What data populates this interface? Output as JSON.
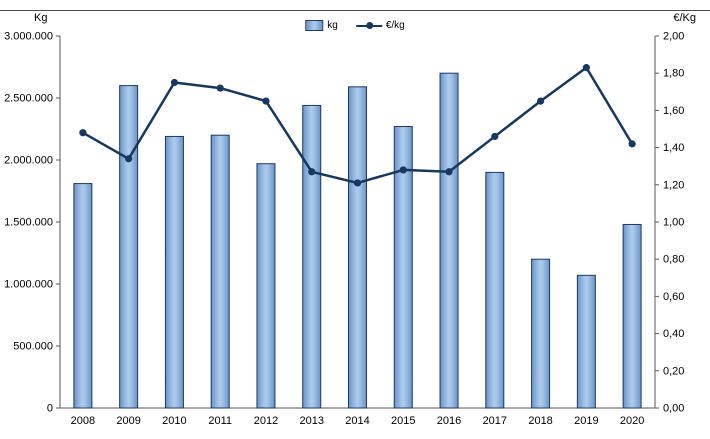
{
  "chart": {
    "left_axis_title": "Kg",
    "right_axis_title": "€/Kg",
    "legend": {
      "bar_label": "kg",
      "line_label": "€/kg"
    },
    "colors": {
      "bar_fill_dark": "#6B93C4",
      "bar_fill_mid": "#9DBFE6",
      "bar_fill_light": "#AECBEC",
      "bar_border": "#1F3864",
      "line": "#17375E",
      "axis": "#595959",
      "text": "#000000"
    }
  },
  "chart_data": {
    "type": "bar+line",
    "title": "",
    "categories": [
      "2008",
      "2009",
      "2010",
      "2011",
      "2012",
      "2013",
      "2014",
      "2015",
      "2016",
      "2017",
      "2018",
      "2019",
      "2020"
    ],
    "series": [
      {
        "name": "kg",
        "type": "bar",
        "axis": "left",
        "values": [
          1810000,
          2600000,
          2190000,
          2200000,
          1970000,
          2440000,
          2590000,
          2270000,
          2700000,
          1900000,
          1200000,
          1070000,
          1480000
        ]
      },
      {
        "name": "€/kg",
        "type": "line",
        "axis": "right",
        "values": [
          1.48,
          1.34,
          1.75,
          1.72,
          1.65,
          1.27,
          1.21,
          1.28,
          1.27,
          1.46,
          1.65,
          1.83,
          1.42
        ]
      }
    ],
    "left_axis": {
      "label": "Kg",
      "min": 0,
      "max": 3000000,
      "step": 500000,
      "tick_labels": [
        "0",
        "500.000",
        "1.000.000",
        "1.500.000",
        "2.000.000",
        "2.500.000",
        "3.000.000"
      ]
    },
    "right_axis": {
      "label": "€/Kg",
      "min": 0,
      "max": 2,
      "step": 0.2,
      "tick_labels": [
        "0,00",
        "0,20",
        "0,40",
        "0,60",
        "0,80",
        "1,00",
        "1,20",
        "1,40",
        "1,60",
        "1,80",
        "2,00"
      ]
    },
    "grid": false,
    "legend_position": "top-center"
  }
}
